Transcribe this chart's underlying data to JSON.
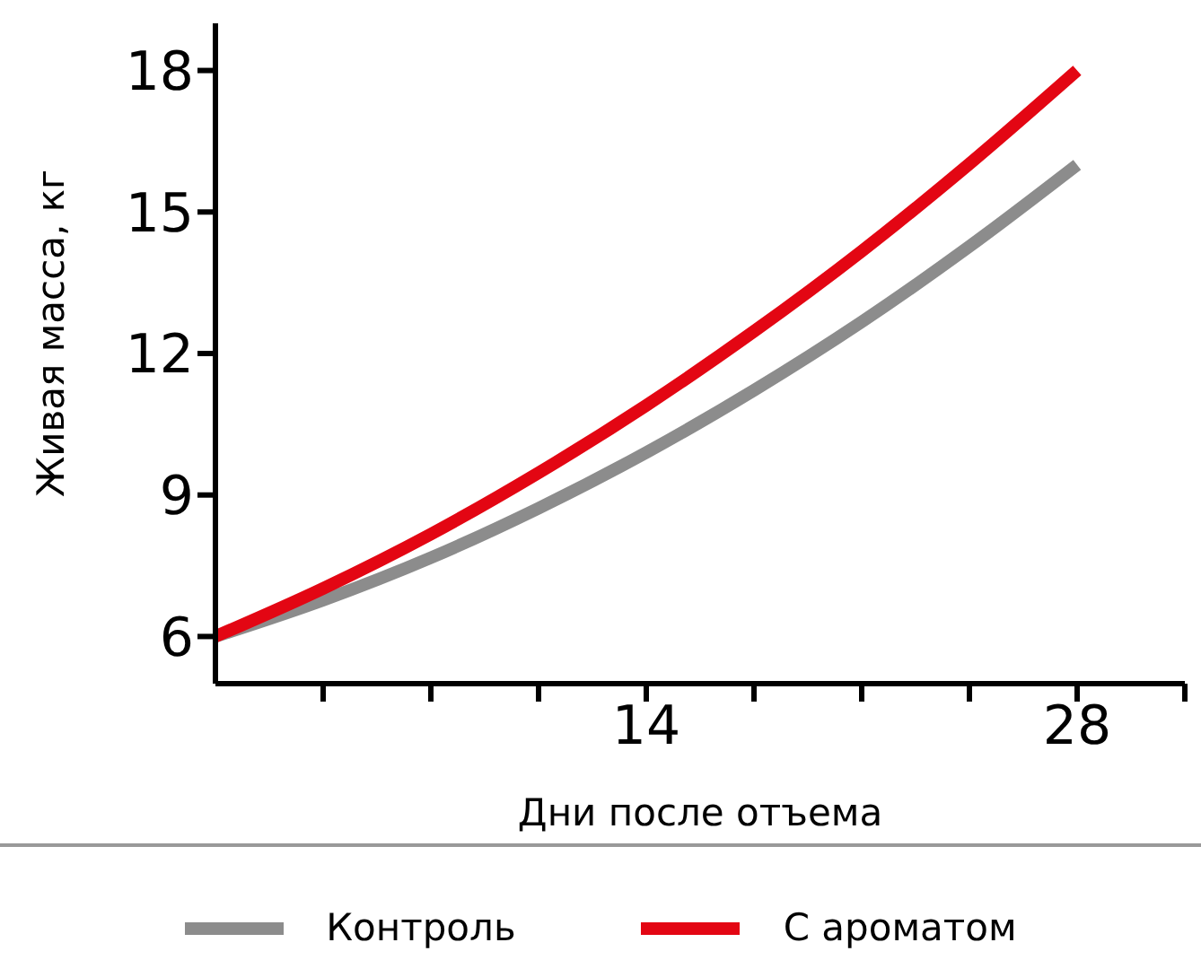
{
  "chart_data": {
    "type": "line",
    "xlabel": "Дни после отъема",
    "ylabel": "Живая масса, кг",
    "x": [
      0,
      3.5,
      7,
      10.5,
      14,
      17.5,
      21,
      24.5,
      28
    ],
    "series": [
      {
        "name": "Контроль",
        "color": "#8c8c8c",
        "values": [
          6,
          6.77,
          7.67,
          8.72,
          9.9,
          11.22,
          12.67,
          14.27,
          16
        ]
      },
      {
        "name": "С ароматом",
        "color": "#e30613",
        "values": [
          6,
          7.02,
          8.17,
          9.47,
          10.9,
          12.47,
          14.17,
          16.02,
          18
        ]
      }
    ],
    "xlim": [
      0,
      31.5
    ],
    "xticks": [
      {
        "value": 3.5,
        "label": null
      },
      {
        "value": 7,
        "label": null
      },
      {
        "value": 10.5,
        "label": null
      },
      14,
      {
        "value": 17.5,
        "label": null
      },
      {
        "value": 21,
        "label": null
      },
      {
        "value": 24.5,
        "label": null
      },
      28,
      {
        "value": 31.5,
        "label": null
      }
    ],
    "ylim": [
      5,
      19
    ],
    "yticks": [
      6,
      9,
      12,
      15,
      18
    ],
    "legend": "bottom",
    "marker": "none",
    "line_style": "solid"
  }
}
